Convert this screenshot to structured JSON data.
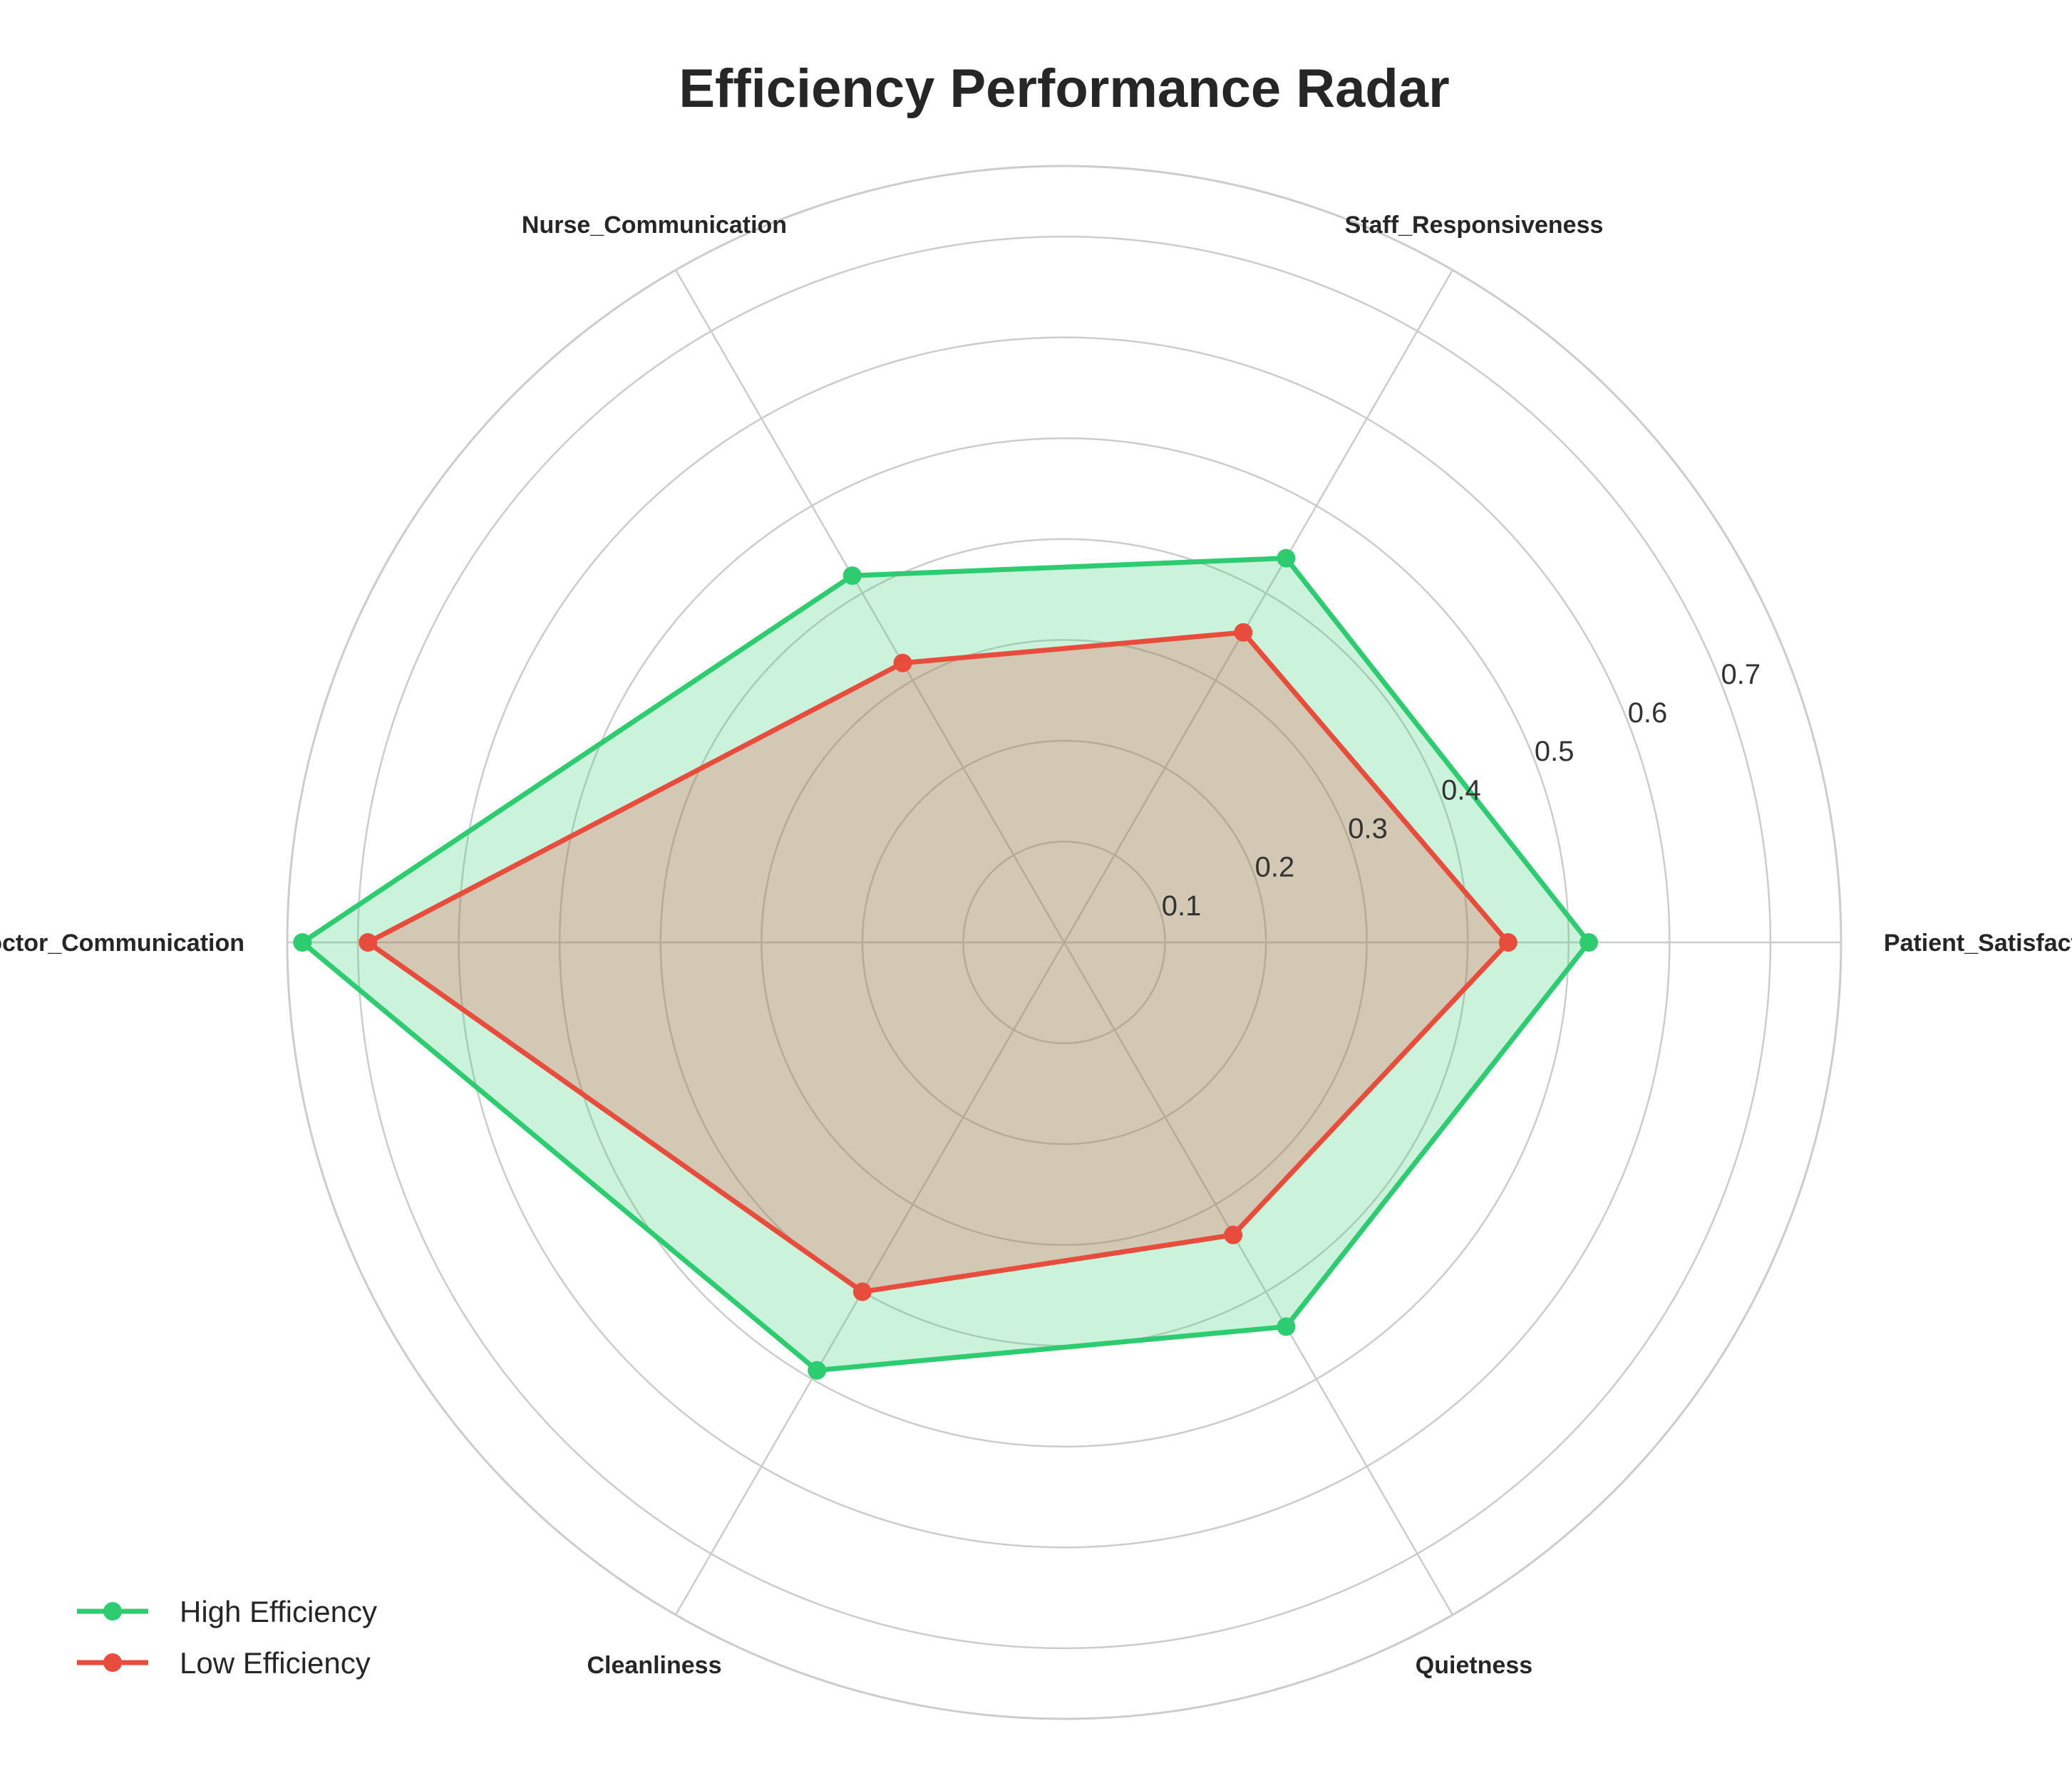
{
  "chart_data": {
    "type": "radar",
    "title": "Efficiency Performance Radar",
    "categories": [
      "Patient_Satisfaction",
      "Staff_Responsiveness",
      "Nurse_Communication",
      "Doctor_Communication",
      "Cleanliness",
      "Quietness"
    ],
    "rticks": [
      0.1,
      0.2,
      0.3,
      0.4,
      0.5,
      0.6,
      0.7
    ],
    "rlim": [
      0,
      0.77
    ],
    "grid": true,
    "legend_position": "bottom-left",
    "series": [
      {
        "name": "High Efficiency",
        "color": "#2ecc71",
        "values": [
          0.52,
          0.44,
          0.42,
          0.755,
          0.49,
          0.44
        ]
      },
      {
        "name": "Low Efficiency",
        "color": "#e74c3c",
        "values": [
          0.44,
          0.355,
          0.32,
          0.69,
          0.4,
          0.335
        ]
      }
    ]
  }
}
